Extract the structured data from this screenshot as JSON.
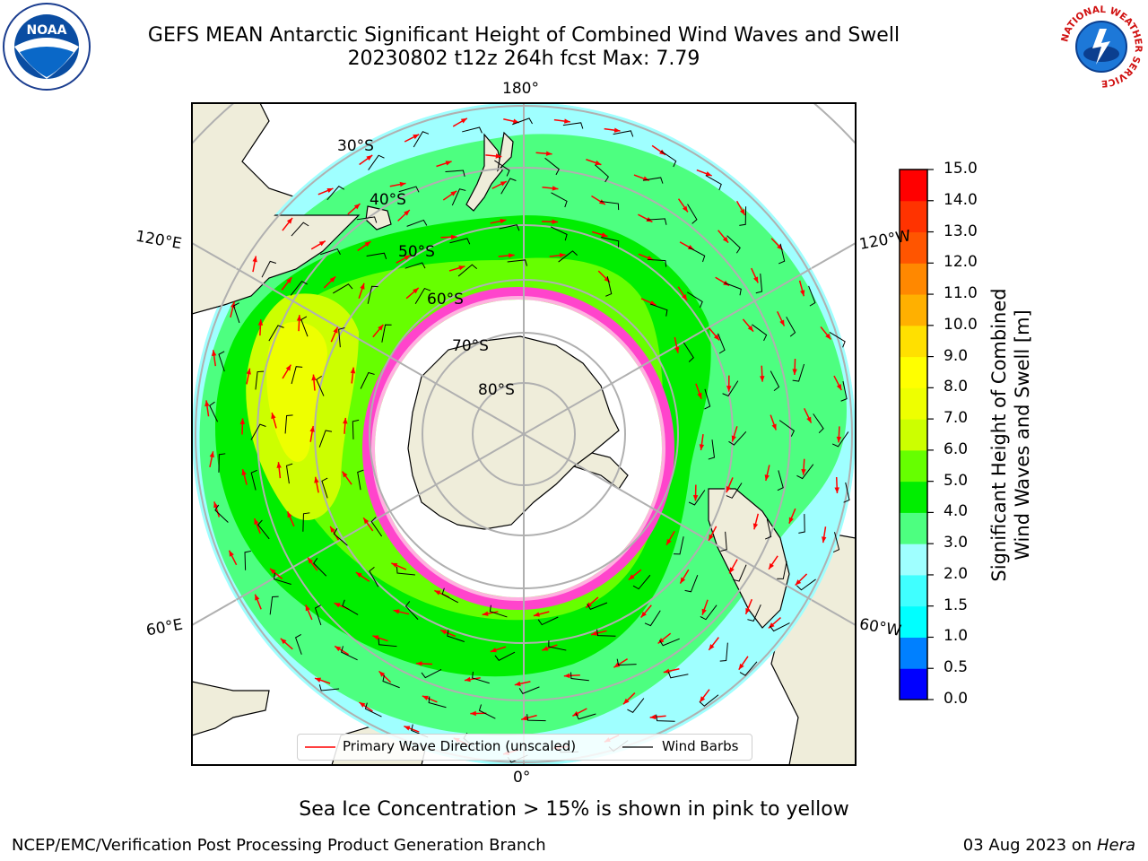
{
  "title": {
    "line1": "GEFS MEAN Antarctic Significant Height of Combined Wind Waves and Swell",
    "line2": "20230802 t12z 264h fcst   Max: 7.79"
  },
  "logos": {
    "left": "noaa-logo",
    "right": "nws-logo",
    "left_text": "NOAA",
    "right_ring_text": "NATIONAL WEATHER SERVICE"
  },
  "map": {
    "projection": "south-polar-stereographic",
    "longitude_labels": {
      "top": "180°",
      "bottom": "0°",
      "upper_left": "120°E",
      "upper_right": "120°W",
      "lower_left": "60°E",
      "lower_right": "60°W"
    },
    "latitude_labels": [
      "30°S",
      "40°S",
      "50°S",
      "60°S",
      "70°S",
      "80°S"
    ],
    "ice_note": "Sea Ice Concentration > 15% is shown in pink to yellow"
  },
  "legend": {
    "wave_direction": "Primary Wave Direction (unscaled)",
    "wind_barbs": "Wind Barbs",
    "wave_color": "#ff0000",
    "barb_color": "#000000"
  },
  "colorbar": {
    "title_line1": "Significant Height of Combined",
    "title_line2": "Wind Waves and Swell [m]",
    "ticks": [
      "0.0",
      "0.5",
      "1.0",
      "1.5",
      "2.0",
      "3.0",
      "4.0",
      "5.0",
      "6.0",
      "7.0",
      "8.0",
      "9.0",
      "10.0",
      "11.0",
      "12.0",
      "13.0",
      "14.0",
      "15.0"
    ],
    "colors": [
      "#0000ff",
      "#0080ff",
      "#00ffff",
      "#40ffff",
      "#9fffff",
      "#4dff80",
      "#00ee00",
      "#66ff00",
      "#ccff00",
      "#eeff00",
      "#ffff00",
      "#ffe000",
      "#ffb000",
      "#ff8800",
      "#ff5500",
      "#ff3300",
      "#ff0000"
    ]
  },
  "footer": {
    "left": "NCEP/EMC/Verification Post Processing Product Generation Branch",
    "right_prefix": "03 Aug 2023 on ",
    "right_host": "Hera"
  }
}
